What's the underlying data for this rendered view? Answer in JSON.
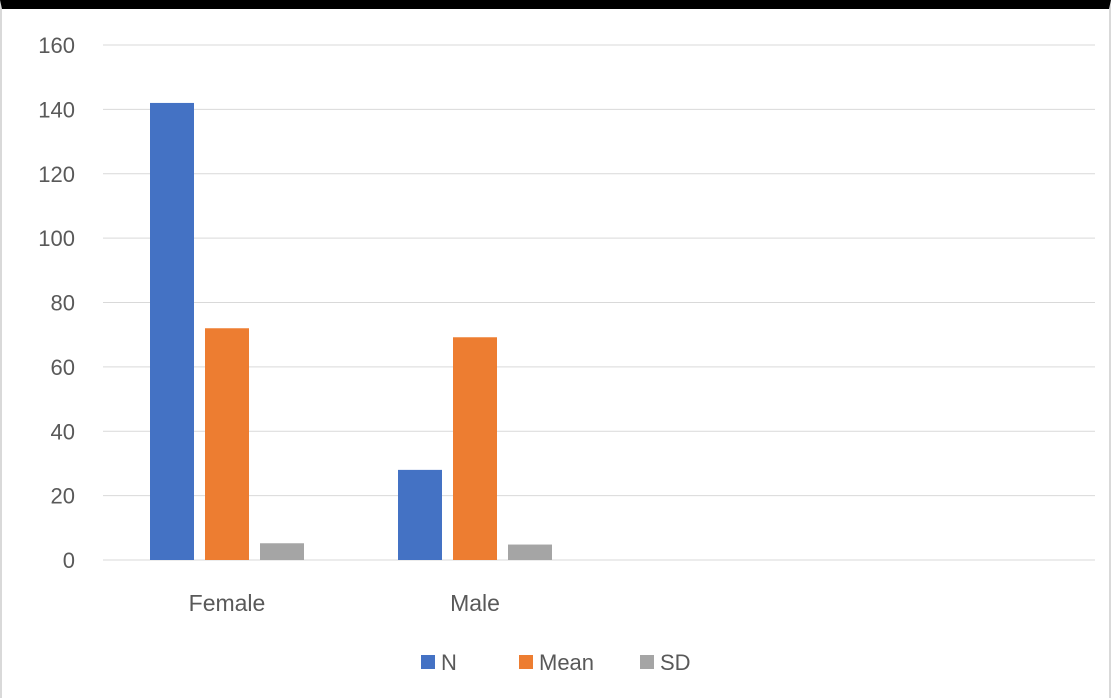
{
  "chart_data": {
    "type": "bar",
    "title": "",
    "xlabel": "",
    "ylabel": "",
    "categories": [
      "Female",
      "Male"
    ],
    "series": [
      {
        "name": "N",
        "values": [
          142,
          28
        ],
        "color": "#4472c4"
      },
      {
        "name": "Mean",
        "values": [
          72,
          69.2
        ],
        "color": "#ed7d31"
      },
      {
        "name": "SD",
        "values": [
          5.2,
          4.8
        ],
        "color": "#a5a5a5"
      }
    ],
    "ylim": [
      0,
      160
    ],
    "yticks": [
      "0",
      "20",
      "40",
      "60",
      "80",
      "100",
      "120",
      "140",
      "160"
    ],
    "grid": true,
    "legend_position": "bottom",
    "axis_line_color": "#d9d9d9",
    "text_color": "#595959"
  }
}
